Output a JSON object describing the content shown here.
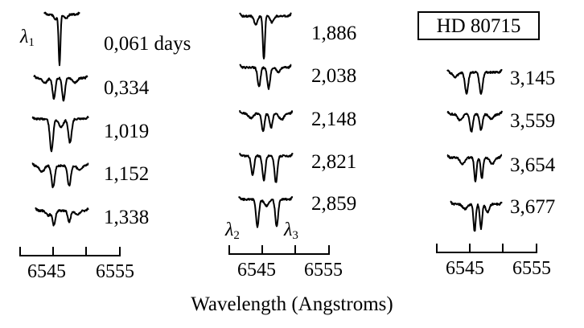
{
  "star_name": "HD 80715",
  "lambda_markers": [
    {
      "symbol": "λ",
      "sub": "1"
    },
    {
      "symbol": "λ",
      "sub": "2"
    },
    {
      "symbol": "λ",
      "sub": "3"
    }
  ],
  "phase_labels": [
    "0,061 days",
    "0,334",
    "1,019",
    "1,152",
    "1,338",
    "1,886",
    "2,038",
    "2,148",
    "2,821",
    "2,859",
    "3,145",
    "3,559",
    "3,654",
    "3,677"
  ],
  "axis_tick_labels": [
    "6545",
    "6555"
  ],
  "x_axis_title": "Wavelength (Angstroms)",
  "line_color": "#000000"
}
